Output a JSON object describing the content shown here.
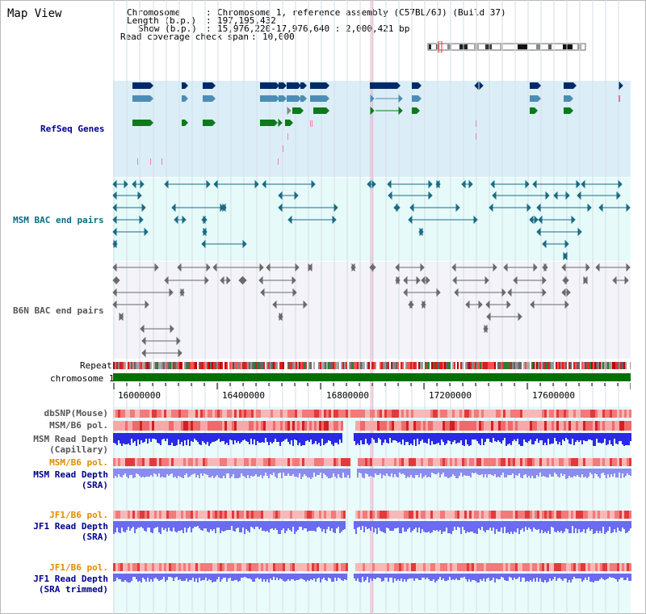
{
  "app": {
    "title": "Map View"
  },
  "header": {
    "chromosome_label": "Chromosome",
    "chromosome_value": "Chromosome 1, reference assembly (C57BL/6J) (Build 37)",
    "length_label": "Length (b.p.)",
    "length_value": "197,195,432",
    "show_label": "Show (b.p.)",
    "show_value": "15,976,220-17,976,640 : 2,000,421 bp",
    "span_label": "Read coverage check span",
    "span_value": "10,000"
  },
  "tracks": {
    "refseq": "RefSeq Genes",
    "msm_bac": "MSM BAC end pairs",
    "b6n_bac": "B6N BAC end pairs",
    "repeat": "Repeat",
    "chromosome": "chromosome 1"
  },
  "axis": {
    "ticks": [
      "16000000",
      "16400000",
      "16800000",
      "17200000",
      "17600000"
    ]
  },
  "lower_tracks": {
    "dbsnp": "dbSNP(Mouse)",
    "msm_pol1": "MSM/B6 pol.",
    "msm_depth_cap_1": "MSM Read Depth",
    "msm_depth_cap_2": "(Capillary)",
    "msm_pol2": "MSM/B6 pol.",
    "msm_depth_sra_1": "MSM Read Depth",
    "msm_depth_sra_2": "(SRA)",
    "jf1_pol1": "JF1/B6 pol.",
    "jf1_depth_sra_1": "JF1 Read Depth",
    "jf1_depth_sra_2": "(SRA)",
    "jf1_pol2": "JF1/B6 pol.",
    "jf1_depth_trim_1": "JF1 Read Depth",
    "jf1_depth_trim_2": "(SRA trimmed)"
  },
  "colors": {
    "refseq_bg": "#dbeef8",
    "msm_bg": "#e6fafa",
    "b6n_bg": "#f3f3f9",
    "chrom_green": "#007000",
    "gene_navy": "#002a66",
    "gene_steel": "#4d8db5",
    "gene_green": "#0a7a1a",
    "msm_teal": "#1a6c84",
    "b6n_grey": "#6a6a6a",
    "label_blue": "#00008b",
    "label_teal": "#0a6c80",
    "label_grey": "#555555",
    "label_orange": "#e08b00"
  }
}
